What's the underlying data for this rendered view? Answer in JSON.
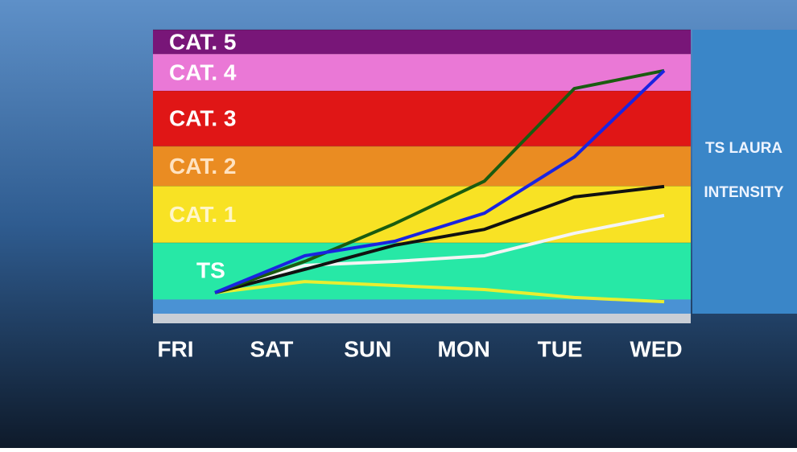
{
  "chart_data": {
    "type": "line",
    "title": "TS LAURA",
    "subtitle": "INTENSITY",
    "categories": [
      "FRI",
      "SAT",
      "SUN",
      "MON",
      "TUE",
      "WED"
    ],
    "ylim": [
      0,
      10
    ],
    "bands": [
      {
        "label": "TS",
        "color": "#27e8a6",
        "range": [
          0.5,
          2.5
        ]
      },
      {
        "label": "CAT. 1",
        "color": "#f8e224",
        "range": [
          2.5,
          4.5
        ]
      },
      {
        "label": "CAT. 2",
        "color": "#ea8c22",
        "range": [
          4.5,
          5.9
        ]
      },
      {
        "label": "CAT. 3",
        "color": "#e01616",
        "range": [
          5.9,
          7.85
        ]
      },
      {
        "label": "CAT. 4",
        "color": "#ea78d6",
        "range": [
          7.85,
          9.15
        ]
      },
      {
        "label": "CAT. 5",
        "color": "#781678",
        "range": [
          9.15,
          10
        ]
      }
    ],
    "series": [
      {
        "color": "#e8ee30",
        "values": [
          0.74,
          1.13,
          0.99,
          0.85,
          0.57,
          0.42
        ]
      },
      {
        "color": "#f4f4f4",
        "values": [
          0.74,
          1.7,
          1.84,
          2.04,
          2.83,
          3.46
        ]
      },
      {
        "color": "#111111",
        "values": [
          0.74,
          1.56,
          2.41,
          2.97,
          4.11,
          4.48
        ]
      },
      {
        "color": "#1a5c10",
        "values": [
          0.74,
          1.84,
          3.17,
          4.67,
          7.93,
          8.56
        ]
      },
      {
        "color": "#1a24e0",
        "values": [
          0.74,
          2.04,
          2.55,
          3.54,
          5.52,
          8.56
        ]
      }
    ]
  }
}
